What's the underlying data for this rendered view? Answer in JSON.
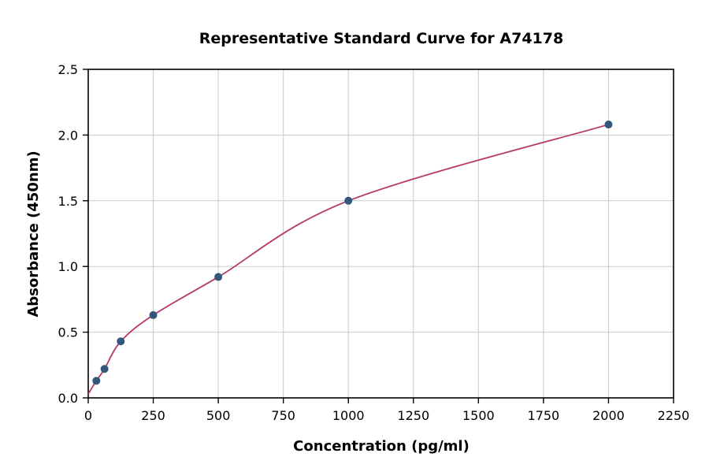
{
  "chart_data": {
    "type": "scatter",
    "title": "Representative Standard Curve for A74178",
    "xlabel": "Concentration (pg/ml)",
    "ylabel": "Absorbance (450nm)",
    "xlim": [
      0,
      2250
    ],
    "ylim": [
      0,
      2.5
    ],
    "x_ticks": [
      0,
      250,
      500,
      750,
      1000,
      1250,
      1500,
      1750,
      2000,
      2250
    ],
    "x_tick_labels": [
      "0",
      "250",
      "500",
      "750",
      "1000",
      "1250",
      "1500",
      "1750",
      "2000",
      "2250"
    ],
    "y_ticks": [
      0.0,
      0.5,
      1.0,
      1.5,
      2.0,
      2.5
    ],
    "y_tick_labels": [
      "0.0",
      "0.5",
      "1.0",
      "1.5",
      "2.0",
      "2.5"
    ],
    "grid": true,
    "legend": "none",
    "points": [
      [
        31.25,
        0.13
      ],
      [
        62.5,
        0.22
      ],
      [
        125,
        0.43
      ],
      [
        250,
        0.63
      ],
      [
        500,
        0.92
      ],
      [
        1000,
        1.5
      ],
      [
        2000,
        2.08
      ]
    ],
    "curve_start": [
      0,
      0.03
    ],
    "colors": {
      "curve": "#b63a62",
      "point": "#33567d",
      "grid": "#cccccc",
      "axis": "#000000",
      "background": "#ffffff"
    }
  }
}
